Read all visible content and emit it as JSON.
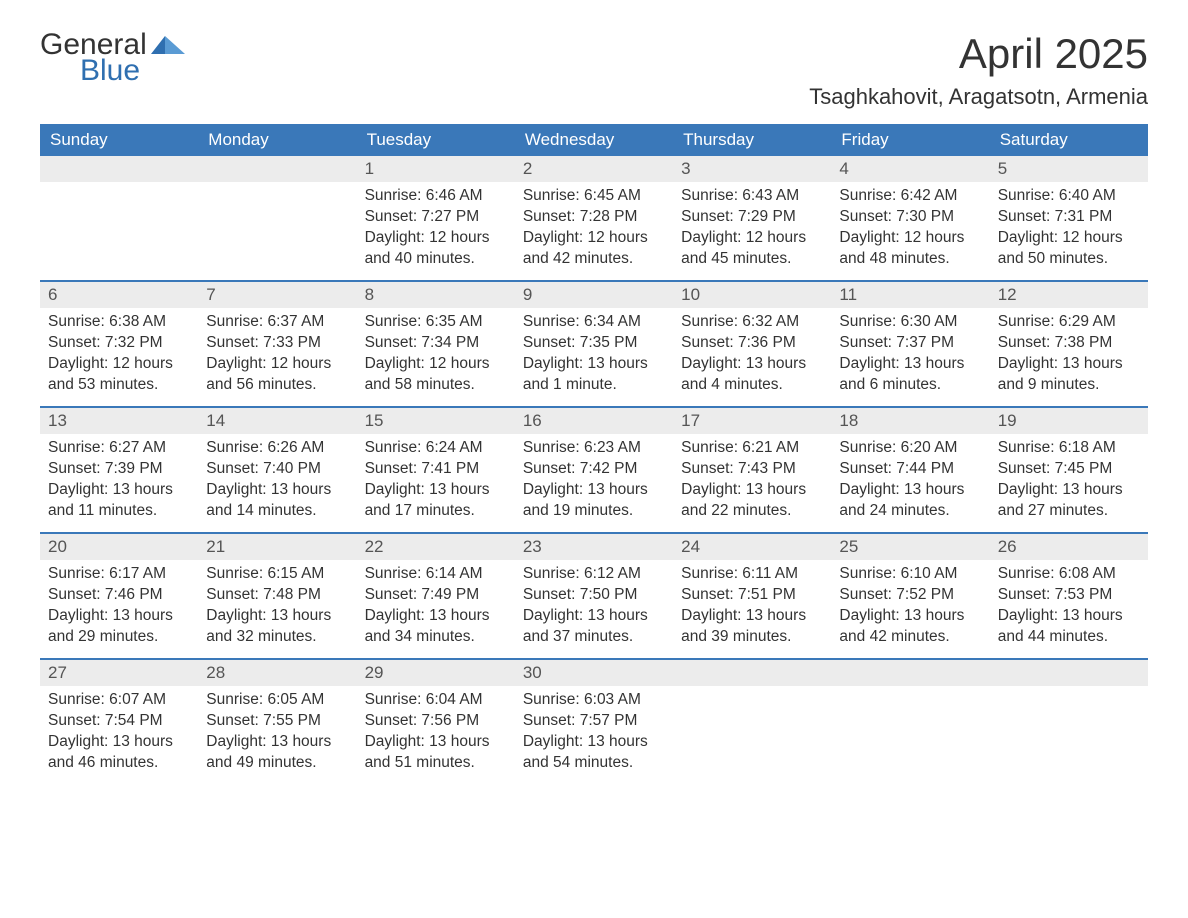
{
  "logo": {
    "text1": "General",
    "text2": "Blue",
    "brand_color": "#2f6fb0"
  },
  "title": "April 2025",
  "location": "Tsaghkahovit, Aragatsotn, Armenia",
  "colors": {
    "header_bg": "#3a78b9",
    "header_text": "#ffffff",
    "daynum_bg": "#ececec",
    "week_border": "#3a78b9",
    "body_text": "#333333",
    "page_bg": "#ffffff"
  },
  "typography": {
    "title_fontsize": 42,
    "location_fontsize": 22,
    "header_fontsize": 17,
    "daynum_fontsize": 17,
    "body_fontsize": 15.5,
    "font_family": "Arial"
  },
  "day_names": [
    "Sunday",
    "Monday",
    "Tuesday",
    "Wednesday",
    "Thursday",
    "Friday",
    "Saturday"
  ],
  "weeks": [
    [
      {
        "day": null
      },
      {
        "day": null
      },
      {
        "day": "1",
        "sunrise": "Sunrise: 6:46 AM",
        "sunset": "Sunset: 7:27 PM",
        "dl1": "Daylight: 12 hours",
        "dl2": "and 40 minutes."
      },
      {
        "day": "2",
        "sunrise": "Sunrise: 6:45 AM",
        "sunset": "Sunset: 7:28 PM",
        "dl1": "Daylight: 12 hours",
        "dl2": "and 42 minutes."
      },
      {
        "day": "3",
        "sunrise": "Sunrise: 6:43 AM",
        "sunset": "Sunset: 7:29 PM",
        "dl1": "Daylight: 12 hours",
        "dl2": "and 45 minutes."
      },
      {
        "day": "4",
        "sunrise": "Sunrise: 6:42 AM",
        "sunset": "Sunset: 7:30 PM",
        "dl1": "Daylight: 12 hours",
        "dl2": "and 48 minutes."
      },
      {
        "day": "5",
        "sunrise": "Sunrise: 6:40 AM",
        "sunset": "Sunset: 7:31 PM",
        "dl1": "Daylight: 12 hours",
        "dl2": "and 50 minutes."
      }
    ],
    [
      {
        "day": "6",
        "sunrise": "Sunrise: 6:38 AM",
        "sunset": "Sunset: 7:32 PM",
        "dl1": "Daylight: 12 hours",
        "dl2": "and 53 minutes."
      },
      {
        "day": "7",
        "sunrise": "Sunrise: 6:37 AM",
        "sunset": "Sunset: 7:33 PM",
        "dl1": "Daylight: 12 hours",
        "dl2": "and 56 minutes."
      },
      {
        "day": "8",
        "sunrise": "Sunrise: 6:35 AM",
        "sunset": "Sunset: 7:34 PM",
        "dl1": "Daylight: 12 hours",
        "dl2": "and 58 minutes."
      },
      {
        "day": "9",
        "sunrise": "Sunrise: 6:34 AM",
        "sunset": "Sunset: 7:35 PM",
        "dl1": "Daylight: 13 hours",
        "dl2": "and 1 minute."
      },
      {
        "day": "10",
        "sunrise": "Sunrise: 6:32 AM",
        "sunset": "Sunset: 7:36 PM",
        "dl1": "Daylight: 13 hours",
        "dl2": "and 4 minutes."
      },
      {
        "day": "11",
        "sunrise": "Sunrise: 6:30 AM",
        "sunset": "Sunset: 7:37 PM",
        "dl1": "Daylight: 13 hours",
        "dl2": "and 6 minutes."
      },
      {
        "day": "12",
        "sunrise": "Sunrise: 6:29 AM",
        "sunset": "Sunset: 7:38 PM",
        "dl1": "Daylight: 13 hours",
        "dl2": "and 9 minutes."
      }
    ],
    [
      {
        "day": "13",
        "sunrise": "Sunrise: 6:27 AM",
        "sunset": "Sunset: 7:39 PM",
        "dl1": "Daylight: 13 hours",
        "dl2": "and 11 minutes."
      },
      {
        "day": "14",
        "sunrise": "Sunrise: 6:26 AM",
        "sunset": "Sunset: 7:40 PM",
        "dl1": "Daylight: 13 hours",
        "dl2": "and 14 minutes."
      },
      {
        "day": "15",
        "sunrise": "Sunrise: 6:24 AM",
        "sunset": "Sunset: 7:41 PM",
        "dl1": "Daylight: 13 hours",
        "dl2": "and 17 minutes."
      },
      {
        "day": "16",
        "sunrise": "Sunrise: 6:23 AM",
        "sunset": "Sunset: 7:42 PM",
        "dl1": "Daylight: 13 hours",
        "dl2": "and 19 minutes."
      },
      {
        "day": "17",
        "sunrise": "Sunrise: 6:21 AM",
        "sunset": "Sunset: 7:43 PM",
        "dl1": "Daylight: 13 hours",
        "dl2": "and 22 minutes."
      },
      {
        "day": "18",
        "sunrise": "Sunrise: 6:20 AM",
        "sunset": "Sunset: 7:44 PM",
        "dl1": "Daylight: 13 hours",
        "dl2": "and 24 minutes."
      },
      {
        "day": "19",
        "sunrise": "Sunrise: 6:18 AM",
        "sunset": "Sunset: 7:45 PM",
        "dl1": "Daylight: 13 hours",
        "dl2": "and 27 minutes."
      }
    ],
    [
      {
        "day": "20",
        "sunrise": "Sunrise: 6:17 AM",
        "sunset": "Sunset: 7:46 PM",
        "dl1": "Daylight: 13 hours",
        "dl2": "and 29 minutes."
      },
      {
        "day": "21",
        "sunrise": "Sunrise: 6:15 AM",
        "sunset": "Sunset: 7:48 PM",
        "dl1": "Daylight: 13 hours",
        "dl2": "and 32 minutes."
      },
      {
        "day": "22",
        "sunrise": "Sunrise: 6:14 AM",
        "sunset": "Sunset: 7:49 PM",
        "dl1": "Daylight: 13 hours",
        "dl2": "and 34 minutes."
      },
      {
        "day": "23",
        "sunrise": "Sunrise: 6:12 AM",
        "sunset": "Sunset: 7:50 PM",
        "dl1": "Daylight: 13 hours",
        "dl2": "and 37 minutes."
      },
      {
        "day": "24",
        "sunrise": "Sunrise: 6:11 AM",
        "sunset": "Sunset: 7:51 PM",
        "dl1": "Daylight: 13 hours",
        "dl2": "and 39 minutes."
      },
      {
        "day": "25",
        "sunrise": "Sunrise: 6:10 AM",
        "sunset": "Sunset: 7:52 PM",
        "dl1": "Daylight: 13 hours",
        "dl2": "and 42 minutes."
      },
      {
        "day": "26",
        "sunrise": "Sunrise: 6:08 AM",
        "sunset": "Sunset: 7:53 PM",
        "dl1": "Daylight: 13 hours",
        "dl2": "and 44 minutes."
      }
    ],
    [
      {
        "day": "27",
        "sunrise": "Sunrise: 6:07 AM",
        "sunset": "Sunset: 7:54 PM",
        "dl1": "Daylight: 13 hours",
        "dl2": "and 46 minutes."
      },
      {
        "day": "28",
        "sunrise": "Sunrise: 6:05 AM",
        "sunset": "Sunset: 7:55 PM",
        "dl1": "Daylight: 13 hours",
        "dl2": "and 49 minutes."
      },
      {
        "day": "29",
        "sunrise": "Sunrise: 6:04 AM",
        "sunset": "Sunset: 7:56 PM",
        "dl1": "Daylight: 13 hours",
        "dl2": "and 51 minutes."
      },
      {
        "day": "30",
        "sunrise": "Sunrise: 6:03 AM",
        "sunset": "Sunset: 7:57 PM",
        "dl1": "Daylight: 13 hours",
        "dl2": "and 54 minutes."
      },
      {
        "day": null
      },
      {
        "day": null
      },
      {
        "day": null
      }
    ]
  ]
}
